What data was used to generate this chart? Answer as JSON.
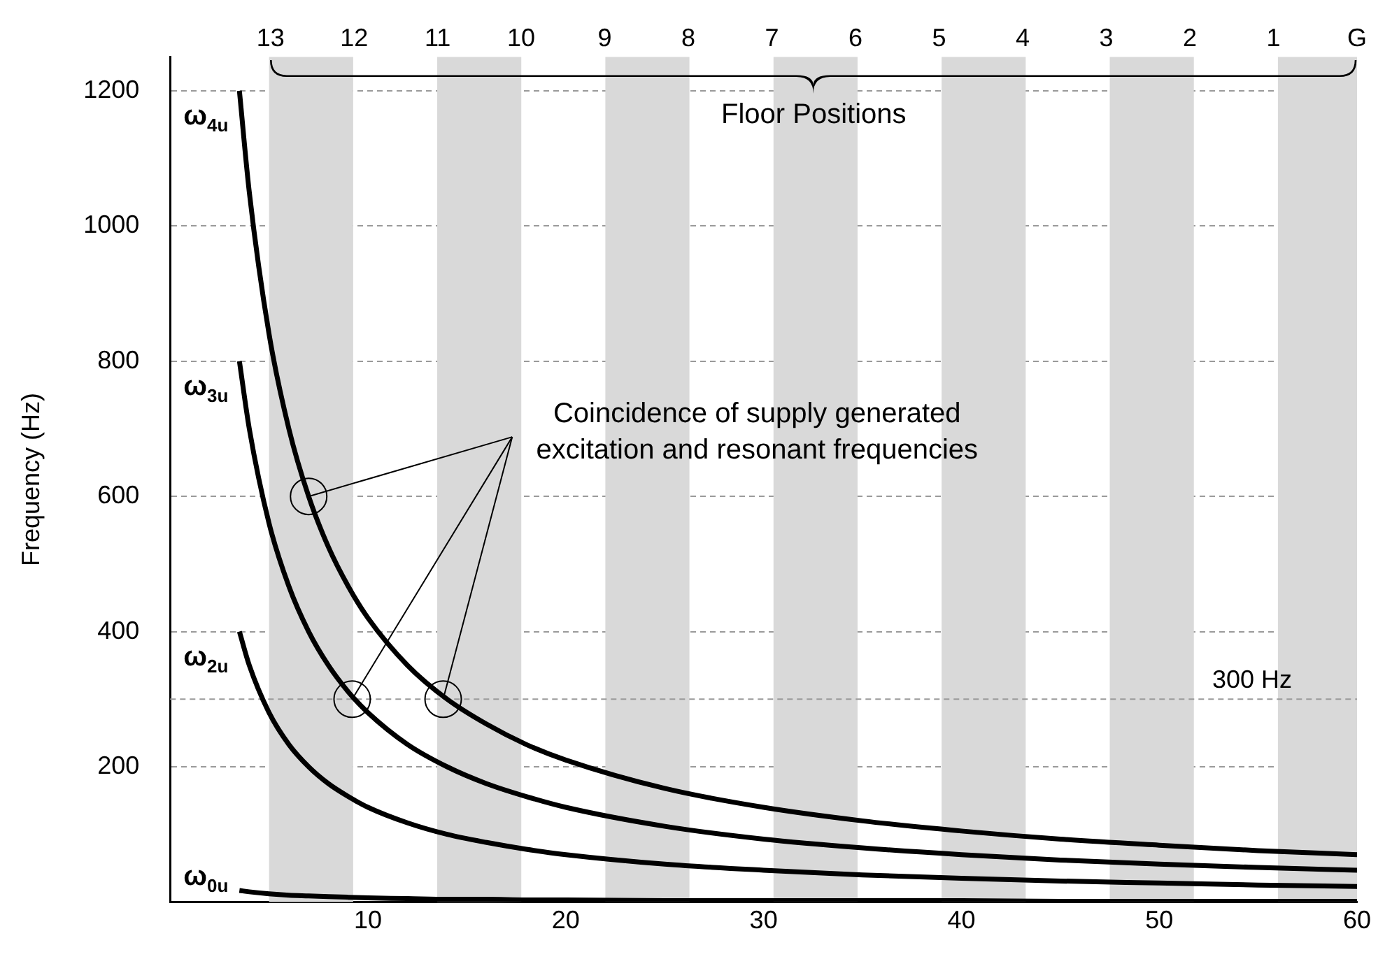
{
  "chart_data": {
    "type": "line",
    "ylabel": "Frequency (Hz)",
    "x2label": "Floor Positions",
    "xlim": [
      0,
      60
    ],
    "xticks": [
      10,
      20,
      30,
      40,
      50,
      60
    ],
    "ylim": [
      0,
      1250
    ],
    "yticks": [
      200,
      400,
      600,
      800,
      1000,
      1200
    ],
    "x2lim": [
      14.2,
      0
    ],
    "x2ticks": [
      13,
      12,
      11,
      10,
      9,
      8,
      7,
      6,
      5,
      4,
      3,
      2,
      1,
      {
        "value": 0,
        "label": "G"
      }
    ],
    "x": [
      3.5,
      4,
      5,
      6,
      7,
      8,
      9,
      10,
      12,
      14,
      16,
      18,
      20,
      25,
      30,
      35,
      40,
      45,
      50,
      55,
      60
    ],
    "series": [
      {
        "name": "ω$_{4u}$",
        "color": "#000000",
        "values": [
          1200,
          1050,
          840,
          700,
          600,
          525,
          467,
          420,
          350,
          300,
          263,
          233,
          210,
          168,
          140,
          120,
          105,
          93,
          84,
          76,
          70
        ]
      },
      {
        "name": "ω$_{3u}$",
        "color": "#000000",
        "values": [
          800,
          700,
          560,
          467,
          400,
          350,
          311,
          280,
          233,
          200,
          175,
          156,
          140,
          112,
          93,
          80,
          70,
          62,
          56,
          51,
          47
        ]
      },
      {
        "name": "ω$_{2u}$",
        "color": "#000000",
        "values": [
          400,
          350,
          280,
          233,
          200,
          175,
          156,
          140,
          117,
          100,
          88,
          78,
          70,
          56,
          47,
          40,
          35,
          31,
          28,
          25,
          23
        ]
      },
      {
        "name": "ω$_{0u}$",
        "color": "#000000",
        "values": [
          17,
          15,
          12,
          10,
          9,
          8,
          7,
          6,
          5,
          4,
          4,
          3,
          3,
          2,
          2,
          2,
          2,
          1,
          1,
          1,
          1
        ]
      },
      {
        "type": "scatter",
        "color": "#000000",
        "marker": "circle",
        "x": [
          7,
          9.2,
          13.8
        ],
        "values": [
          600,
          300,
          300
        ]
      }
    ],
    "bands": [
      {
        "axis": "x",
        "from": 5,
        "to": 9.25,
        "color": "#d9d9d9"
      },
      {
        "axis": "x",
        "from": 13.5,
        "to": 17.75,
        "color": "#d9d9d9"
      },
      {
        "axis": "x",
        "from": 22,
        "to": 26.25,
        "color": "#d9d9d9"
      },
      {
        "axis": "x",
        "from": 30.5,
        "to": 34.75,
        "color": "#d9d9d9"
      },
      {
        "axis": "x",
        "from": 39,
        "to": 43.25,
        "color": "#d9d9d9"
      },
      {
        "axis": "x",
        "from": 47.5,
        "to": 51.75,
        "color": "#d9d9d9"
      },
      {
        "axis": "x",
        "from": 56,
        "to": 60,
        "color": "#d9d9d9"
      }
    ],
    "ref_lines": [
      {
        "axis": "y",
        "value": 300,
        "label": "300 Hz",
        "color": "#9a9a9a",
        "line_style": "dashed"
      }
    ],
    "annotations": [
      {
        "text": "Coincidence of supply generated excitation and resonant frequencies",
        "x": 7,
        "y": 600
      }
    ],
    "grid": "y",
    "legend": false,
    "marker": "none",
    "line_style": "solid"
  }
}
